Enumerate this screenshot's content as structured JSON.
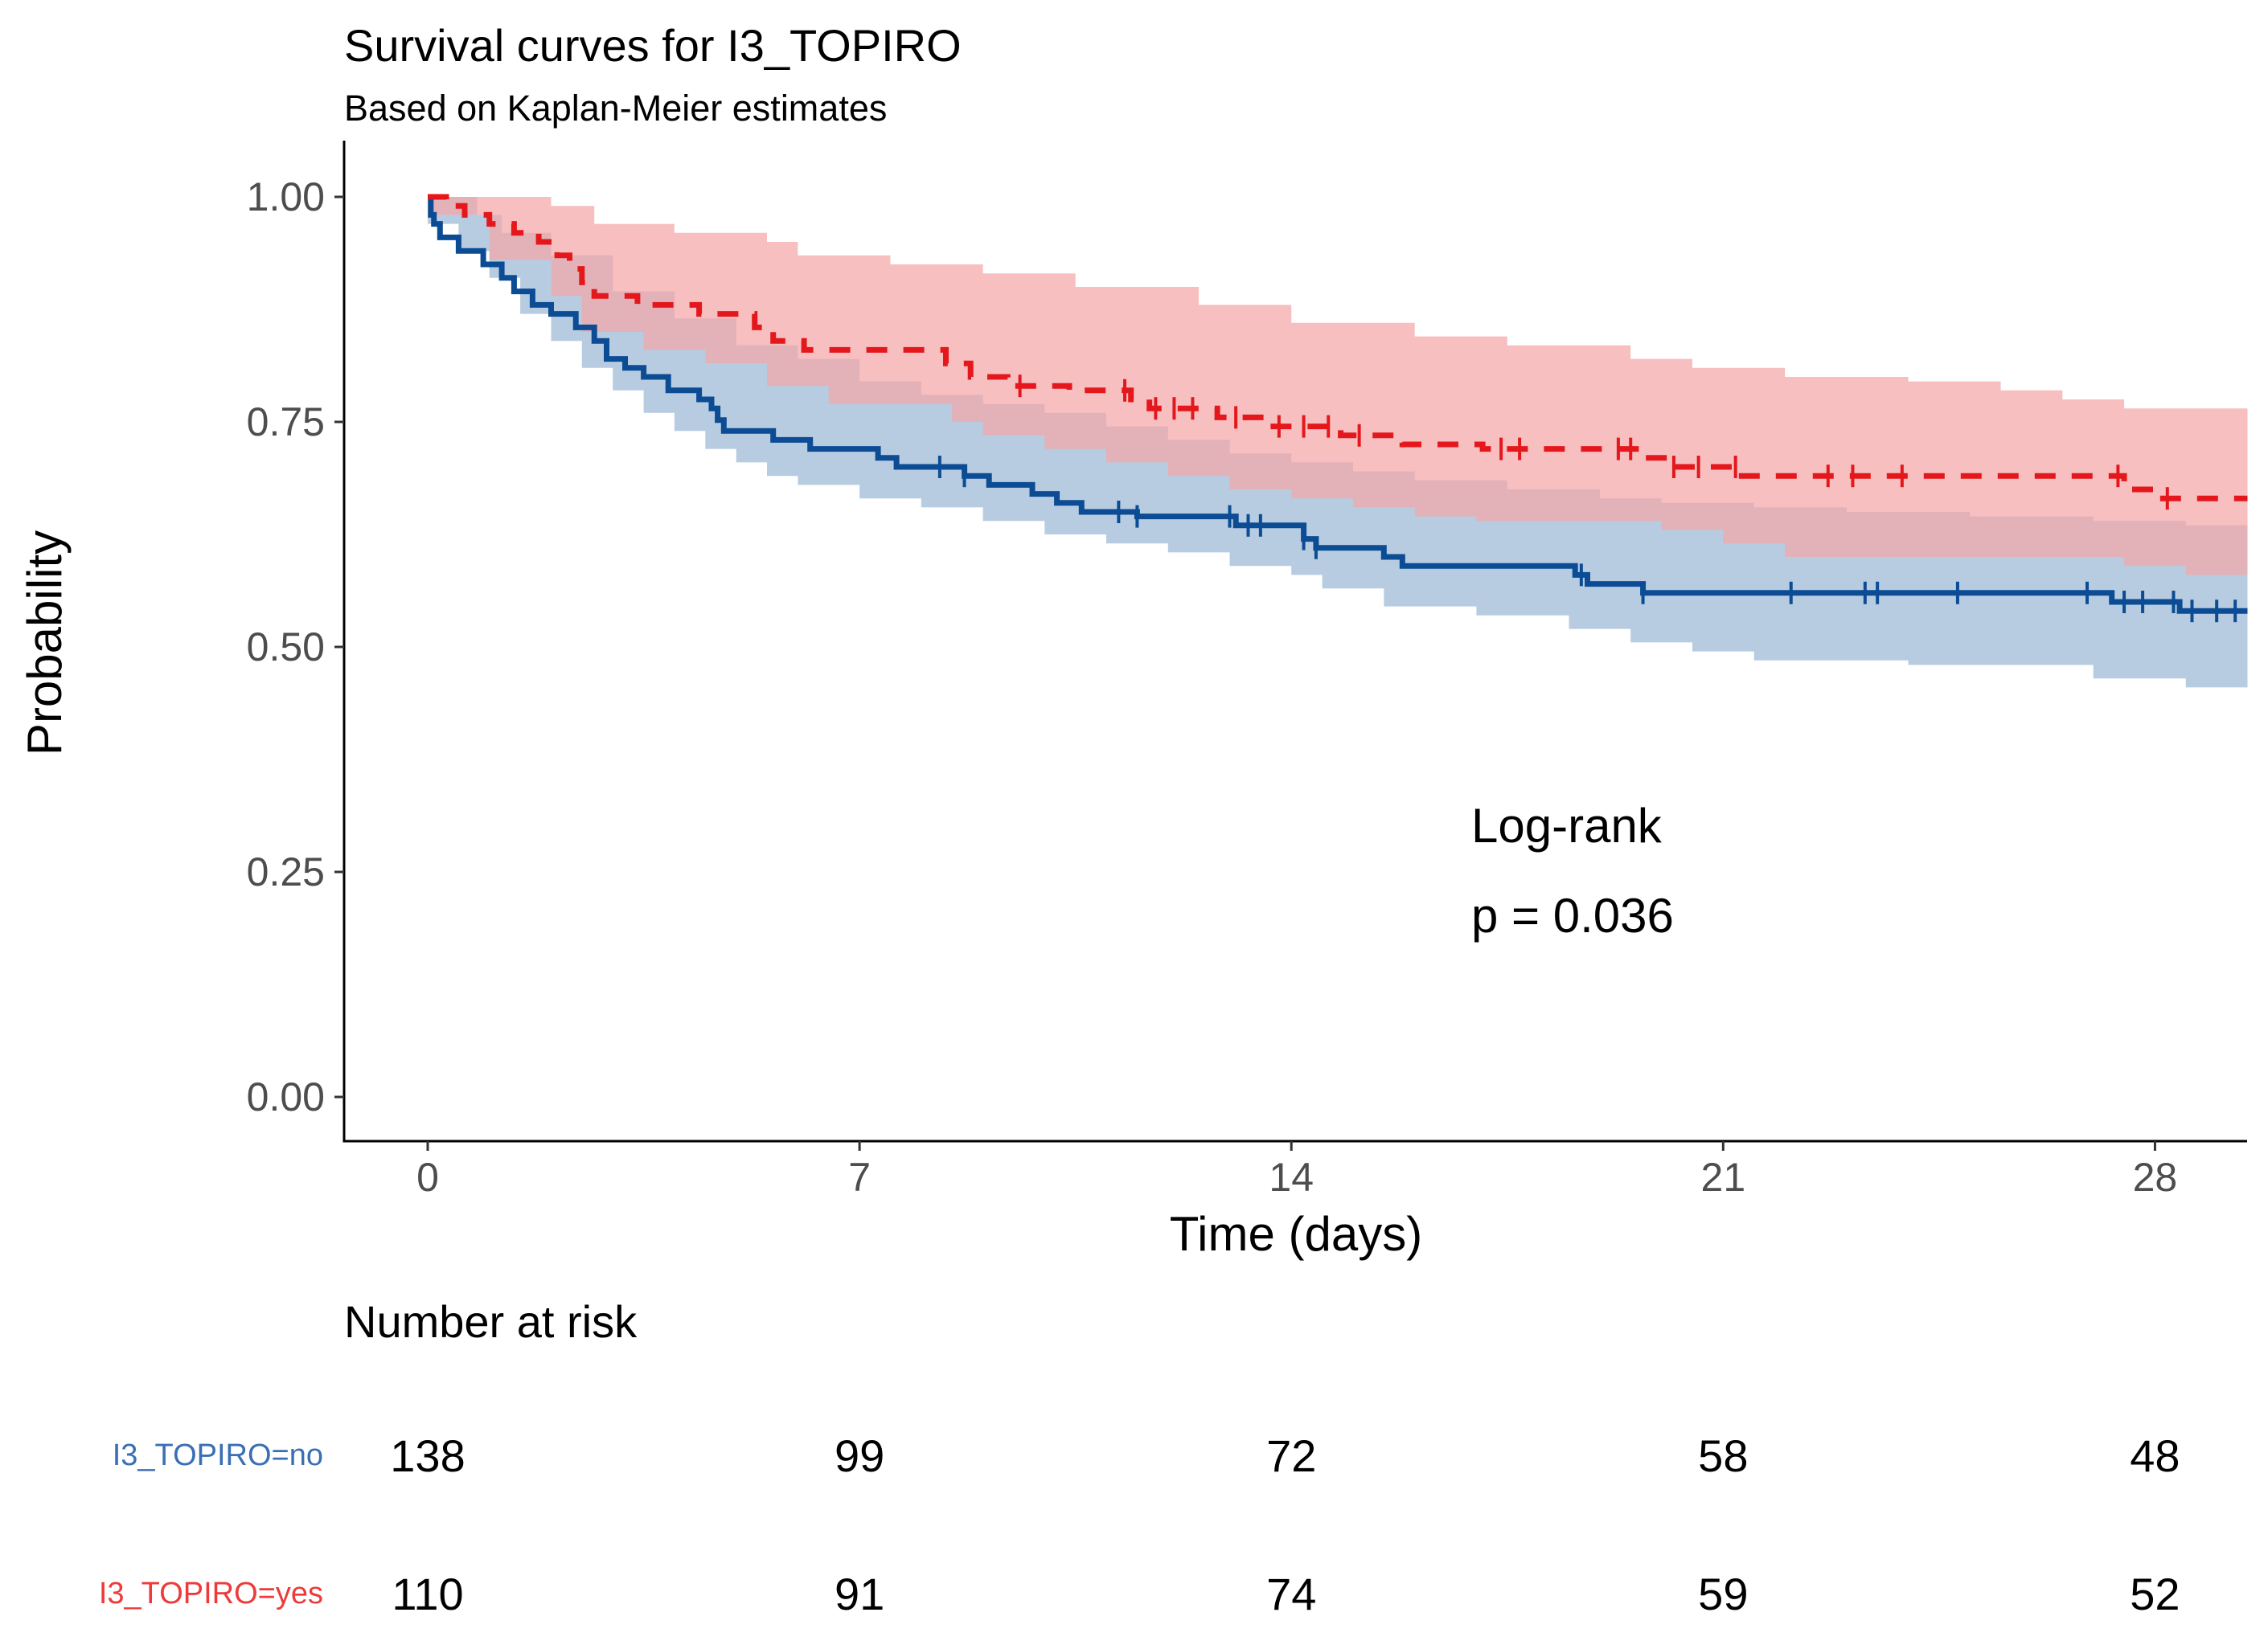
{
  "chart_data": {
    "type": "line",
    "subtype": "kaplan-meier",
    "title": "Survival curves for I3_TOPIRO",
    "subtitle": "Based on Kaplan-Meier estimates",
    "xlabel": "Time (days)",
    "ylabel": "Probability",
    "xlim": [
      0,
      29.5
    ],
    "ylim": [
      0,
      1.05
    ],
    "x_ticks": [
      0,
      7,
      14,
      21,
      28
    ],
    "x_tick_labels": [
      "0",
      "7",
      "14",
      "21",
      "28"
    ],
    "y_ticks": [
      0,
      0.25,
      0.5,
      0.75,
      1.0
    ],
    "y_tick_labels": [
      "0.00",
      "0.25",
      "0.50",
      "0.75",
      "1.00"
    ],
    "grid": false,
    "annotation": {
      "line1": "Log-rank",
      "line2": "p = 0.036"
    },
    "series": [
      {
        "name": "I3_TOPIRO=no",
        "color": "#0b4c94",
        "band_color": "#9db8d6",
        "dash": "solid",
        "steps": [
          [
            0,
            1.0
          ],
          [
            0.05,
            0.98
          ],
          [
            0.1,
            0.97
          ],
          [
            0.2,
            0.955
          ],
          [
            0.5,
            0.94
          ],
          [
            0.9,
            0.925
          ],
          [
            1.2,
            0.91
          ],
          [
            1.4,
            0.895
          ],
          [
            1.7,
            0.88
          ],
          [
            2.0,
            0.87
          ],
          [
            2.4,
            0.855
          ],
          [
            2.7,
            0.84
          ],
          [
            2.9,
            0.82
          ],
          [
            3.2,
            0.81
          ],
          [
            3.5,
            0.8
          ],
          [
            3.9,
            0.785
          ],
          [
            4.4,
            0.775
          ],
          [
            4.6,
            0.765
          ],
          [
            4.7,
            0.752
          ],
          [
            4.8,
            0.74
          ],
          [
            5.6,
            0.73
          ],
          [
            6.2,
            0.72
          ],
          [
            7.3,
            0.71
          ],
          [
            7.6,
            0.7
          ],
          [
            8.7,
            0.69
          ],
          [
            9.1,
            0.68
          ],
          [
            9.8,
            0.67
          ],
          [
            10.2,
            0.66
          ],
          [
            10.6,
            0.65
          ],
          [
            11.5,
            0.645
          ],
          [
            13.1,
            0.635
          ],
          [
            14.2,
            0.62
          ],
          [
            14.4,
            0.61
          ],
          [
            15.5,
            0.6
          ],
          [
            15.8,
            0.59
          ],
          [
            18.6,
            0.58
          ],
          [
            18.8,
            0.57
          ],
          [
            19.7,
            0.56
          ],
          [
            27.3,
            0.55
          ],
          [
            28.4,
            0.54
          ],
          [
            29.5,
            0.54
          ]
        ],
        "band_lower": [
          [
            0,
            0.97
          ],
          [
            0.5,
            0.94
          ],
          [
            1.0,
            0.91
          ],
          [
            1.5,
            0.87
          ],
          [
            2.0,
            0.84
          ],
          [
            2.5,
            0.81
          ],
          [
            3.0,
            0.785
          ],
          [
            3.5,
            0.76
          ],
          [
            4.0,
            0.74
          ],
          [
            4.5,
            0.72
          ],
          [
            5.0,
            0.705
          ],
          [
            5.5,
            0.69
          ],
          [
            6.0,
            0.68
          ],
          [
            7.0,
            0.665
          ],
          [
            8.0,
            0.655
          ],
          [
            9.0,
            0.64
          ],
          [
            10.0,
            0.625
          ],
          [
            11.0,
            0.615
          ],
          [
            12.0,
            0.605
          ],
          [
            13.0,
            0.59
          ],
          [
            14.0,
            0.58
          ],
          [
            14.5,
            0.565
          ],
          [
            15.5,
            0.545
          ],
          [
            17.0,
            0.535
          ],
          [
            18.5,
            0.52
          ],
          [
            19.5,
            0.505
          ],
          [
            20.5,
            0.495
          ],
          [
            21.5,
            0.485
          ],
          [
            24.0,
            0.48
          ],
          [
            27.0,
            0.465
          ],
          [
            28.5,
            0.455
          ],
          [
            29.5,
            0.455
          ]
        ],
        "band_upper": [
          [
            0,
            1.0
          ],
          [
            0.8,
            0.98
          ],
          [
            1.2,
            0.96
          ],
          [
            2.0,
            0.935
          ],
          [
            3.0,
            0.895
          ],
          [
            4.0,
            0.865
          ],
          [
            5.0,
            0.835
          ],
          [
            6.0,
            0.82
          ],
          [
            7.0,
            0.795
          ],
          [
            8.0,
            0.78
          ],
          [
            9.0,
            0.77
          ],
          [
            10.0,
            0.76
          ],
          [
            11.0,
            0.745
          ],
          [
            12.0,
            0.73
          ],
          [
            13.0,
            0.715
          ],
          [
            14.0,
            0.705
          ],
          [
            15.0,
            0.695
          ],
          [
            16.0,
            0.685
          ],
          [
            17.5,
            0.675
          ],
          [
            19.0,
            0.665
          ],
          [
            20.0,
            0.66
          ],
          [
            21.5,
            0.655
          ],
          [
            23.0,
            0.65
          ],
          [
            25.0,
            0.645
          ],
          [
            27.0,
            0.64
          ],
          [
            28.5,
            0.635
          ],
          [
            29.5,
            0.635
          ]
        ],
        "censor_times": [
          8.3,
          8.7,
          11.2,
          11.5,
          13.0,
          13.3,
          13.5,
          14.2,
          14.4,
          18.7,
          19.7,
          22.1,
          23.3,
          23.5,
          24.8,
          26.9,
          27.5,
          27.8,
          28.3,
          28.6,
          29.0,
          29.3
        ],
        "risk": [
          138,
          99,
          72,
          58,
          48
        ]
      },
      {
        "name": "I3_TOPIRO=yes",
        "color": "#e4181c",
        "band_color": "#f4a6a8",
        "dash": "dashed",
        "steps": [
          [
            0,
            1.0
          ],
          [
            0.3,
            0.99
          ],
          [
            0.6,
            0.98
          ],
          [
            1.0,
            0.97
          ],
          [
            1.4,
            0.96
          ],
          [
            1.8,
            0.95
          ],
          [
            2.1,
            0.935
          ],
          [
            2.3,
            0.92
          ],
          [
            2.5,
            0.905
          ],
          [
            2.7,
            0.89
          ],
          [
            3.4,
            0.88
          ],
          [
            4.4,
            0.87
          ],
          [
            5.3,
            0.855
          ],
          [
            5.6,
            0.84
          ],
          [
            6.1,
            0.83
          ],
          [
            8.4,
            0.815
          ],
          [
            8.8,
            0.8
          ],
          [
            9.4,
            0.79
          ],
          [
            10.4,
            0.785
          ],
          [
            11.4,
            0.775
          ],
          [
            11.7,
            0.765
          ],
          [
            12.8,
            0.755
          ],
          [
            13.6,
            0.745
          ],
          [
            14.8,
            0.735
          ],
          [
            15.8,
            0.725
          ],
          [
            17.1,
            0.72
          ],
          [
            19.7,
            0.71
          ],
          [
            20.1,
            0.7
          ],
          [
            21.3,
            0.69
          ],
          [
            27.5,
            0.675
          ],
          [
            28.0,
            0.665
          ],
          [
            29.5,
            0.665
          ]
        ],
        "band_lower": [
          [
            0,
            0.98
          ],
          [
            1.0,
            0.93
          ],
          [
            2.0,
            0.89
          ],
          [
            2.5,
            0.85
          ],
          [
            3.5,
            0.83
          ],
          [
            4.5,
            0.815
          ],
          [
            5.5,
            0.79
          ],
          [
            6.5,
            0.77
          ],
          [
            8.5,
            0.75
          ],
          [
            9.0,
            0.735
          ],
          [
            10.0,
            0.72
          ],
          [
            11.0,
            0.705
          ],
          [
            12.0,
            0.69
          ],
          [
            13.0,
            0.675
          ],
          [
            14.0,
            0.665
          ],
          [
            15.0,
            0.655
          ],
          [
            16.0,
            0.645
          ],
          [
            17.0,
            0.64
          ],
          [
            20.0,
            0.63
          ],
          [
            21.0,
            0.615
          ],
          [
            22.0,
            0.6
          ],
          [
            24.0,
            0.6
          ],
          [
            27.5,
            0.59
          ],
          [
            28.5,
            0.58
          ],
          [
            29.5,
            0.58
          ]
        ],
        "band_upper": [
          [
            0,
            1.0
          ],
          [
            1.5,
            1.0
          ],
          [
            2.0,
            0.99
          ],
          [
            2.7,
            0.97
          ],
          [
            4.0,
            0.96
          ],
          [
            5.5,
            0.95
          ],
          [
            6.0,
            0.935
          ],
          [
            7.5,
            0.925
          ],
          [
            9.0,
            0.915
          ],
          [
            10.5,
            0.9
          ],
          [
            12.5,
            0.88
          ],
          [
            14.0,
            0.86
          ],
          [
            16.0,
            0.845
          ],
          [
            17.5,
            0.835
          ],
          [
            19.5,
            0.82
          ],
          [
            20.5,
            0.81
          ],
          [
            22.0,
            0.8
          ],
          [
            24.0,
            0.795
          ],
          [
            25.5,
            0.785
          ],
          [
            26.5,
            0.775
          ],
          [
            27.5,
            0.765
          ],
          [
            29.5,
            0.765
          ]
        ],
        "censor_times": [
          9.6,
          11.3,
          11.8,
          12.1,
          12.4,
          13.1,
          13.8,
          14.2,
          14.6,
          15.1,
          17.4,
          17.7,
          19.3,
          19.5,
          20.2,
          20.6,
          21.2,
          22.7,
          23.1,
          23.9,
          27.4,
          28.2
        ],
        "risk": [
          110,
          91,
          74,
          59,
          52
        ]
      }
    ],
    "risk_table": {
      "title": "Number at risk",
      "times": [
        0,
        7,
        14,
        21,
        28
      ]
    }
  }
}
